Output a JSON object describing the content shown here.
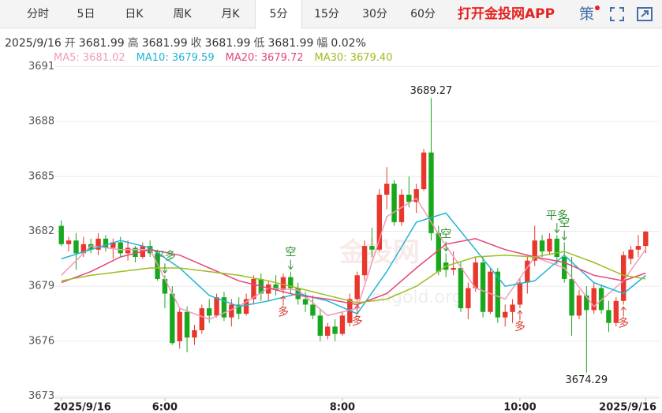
{
  "tabs": {
    "items": [
      "分时",
      "5日",
      "日K",
      "周K",
      "月K",
      "5分",
      "15分",
      "30分",
      "60分"
    ],
    "selected": "5分",
    "promo": "打开金投网APP",
    "strategy": "策"
  },
  "info": {
    "date": "2025/9/16",
    "fields": [
      {
        "label": "开",
        "value": 3681.99
      },
      {
        "label": "高",
        "value": 3681.99
      },
      {
        "label": "收",
        "value": 3681.99
      },
      {
        "label": "低",
        "value": 3681.99
      },
      {
        "label": "幅",
        "value": 0.02,
        "value_label": "0.02%"
      }
    ]
  },
  "chart_data": {
    "type": "candlestick",
    "up_color": "#e8372c",
    "down_color": "#17a81e",
    "grid": true,
    "watermark": [
      "金投网",
      "cngold.org"
    ],
    "candles": [
      [
        3682.3,
        3682.6,
        3681.2,
        3681.3
      ],
      [
        3681.3,
        3681.7,
        3680.9,
        3681.5
      ],
      [
        3681.5,
        3681.9,
        3679.9,
        3680.8
      ],
      [
        3680.8,
        3681.7,
        3680.6,
        3681.3
      ],
      [
        3681.3,
        3681.6,
        3680.8,
        3681.0
      ],
      [
        3681.0,
        3681.9,
        3680.7,
        3681.6
      ],
      [
        3681.6,
        3681.8,
        3680.9,
        3681.1
      ],
      [
        3681.1,
        3681.6,
        3680.5,
        3681.4
      ],
      [
        3681.4,
        3681.7,
        3680.6,
        3680.8
      ],
      [
        3680.8,
        3681.5,
        3680.4,
        3681.1
      ],
      [
        3681.1,
        3681.2,
        3680.3,
        3680.6
      ],
      [
        3680.6,
        3681.4,
        3680.5,
        3681.2
      ],
      [
        3681.2,
        3681.5,
        3680.6,
        3680.8
      ],
      [
        3680.8,
        3681.0,
        3679.3,
        3679.4
      ],
      [
        3679.4,
        3679.6,
        3677.8,
        3678.6
      ],
      [
        3678.6,
        3679.0,
        3675.8,
        3675.9
      ],
      [
        3676.0,
        3677.8,
        3675.6,
        3677.6
      ],
      [
        3677.6,
        3677.9,
        3675.4,
        3676.2
      ],
      [
        3676.2,
        3676.9,
        3675.8,
        3676.6
      ],
      [
        3676.6,
        3678.0,
        3676.4,
        3677.8
      ],
      [
        3677.8,
        3678.3,
        3677.0,
        3677.4
      ],
      [
        3677.4,
        3678.6,
        3677.3,
        3678.4
      ],
      [
        3678.4,
        3678.7,
        3677.1,
        3677.3
      ],
      [
        3677.3,
        3678.3,
        3676.8,
        3678.0
      ],
      [
        3678.0,
        3678.4,
        3677.2,
        3677.5
      ],
      [
        3677.5,
        3678.6,
        3677.4,
        3678.3
      ],
      [
        3678.3,
        3679.6,
        3678.0,
        3679.4
      ],
      [
        3679.4,
        3679.7,
        3678.2,
        3678.6
      ],
      [
        3678.6,
        3679.3,
        3678.2,
        3679.1
      ],
      [
        3679.1,
        3679.6,
        3678.5,
        3678.8
      ],
      [
        3678.8,
        3679.7,
        3678.6,
        3679.5
      ],
      [
        3679.5,
        3679.8,
        3678.6,
        3678.9
      ],
      [
        3678.9,
        3679.2,
        3678.0,
        3678.3
      ],
      [
        3678.3,
        3678.7,
        3677.6,
        3678.0
      ],
      [
        3678.0,
        3678.5,
        3677.2,
        3677.4
      ],
      [
        3677.4,
        3677.8,
        3676.0,
        3676.3
      ],
      [
        3676.3,
        3677.0,
        3676.1,
        3676.8
      ],
      [
        3676.8,
        3677.2,
        3676.0,
        3676.4
      ],
      [
        3676.4,
        3677.6,
        3676.3,
        3677.4
      ],
      [
        3677.0,
        3678.6,
        3676.8,
        3678.3
      ],
      [
        3678.3,
        3679.8,
        3678.1,
        3679.6
      ],
      [
        3679.6,
        3681.5,
        3679.3,
        3681.2
      ],
      [
        3681.2,
        3682.2,
        3680.6,
        3681.0
      ],
      [
        3681.0,
        3684.3,
        3680.9,
        3684.0
      ],
      [
        3684.0,
        3685.5,
        3683.2,
        3684.6
      ],
      [
        3684.6,
        3684.8,
        3682.3,
        3682.5
      ],
      [
        3682.5,
        3684.3,
        3682.3,
        3684.0
      ],
      [
        3684.0,
        3685.0,
        3683.3,
        3683.6
      ],
      [
        3683.6,
        3684.6,
        3683.0,
        3684.3
      ],
      [
        3684.3,
        3686.5,
        3684.2,
        3686.3
      ],
      [
        3686.3,
        3689.27,
        3681.5,
        3681.9
      ],
      [
        3681.9,
        3682.3,
        3679.6,
        3679.8
      ],
      [
        3680.3,
        3680.8,
        3679.5,
        3679.9
      ],
      [
        3679.9,
        3680.9,
        3679.6,
        3680.0
      ],
      [
        3680.0,
        3680.3,
        3677.6,
        3677.8
      ],
      [
        3677.8,
        3679.2,
        3677.2,
        3678.9
      ],
      [
        3678.9,
        3680.6,
        3678.7,
        3680.3
      ],
      [
        3680.3,
        3680.6,
        3677.3,
        3677.6
      ],
      [
        3677.6,
        3680.0,
        3677.5,
        3679.8
      ],
      [
        3679.8,
        3680.0,
        3677.0,
        3677.3
      ],
      [
        3677.3,
        3678.0,
        3676.8,
        3677.6
      ],
      [
        3677.6,
        3678.3,
        3677.0,
        3678.0
      ],
      [
        3678.0,
        3679.4,
        3677.8,
        3679.2
      ],
      [
        3679.2,
        3680.6,
        3678.6,
        3680.4
      ],
      [
        3680.4,
        3682.3,
        3680.1,
        3681.5
      ],
      [
        3681.5,
        3681.8,
        3680.6,
        3680.9
      ],
      [
        3680.9,
        3681.9,
        3680.7,
        3681.6
      ],
      [
        3681.6,
        3681.8,
        3680.2,
        3680.6
      ],
      [
        3680.6,
        3681.4,
        3679.2,
        3679.4
      ],
      [
        3679.4,
        3680.6,
        3676.3,
        3677.4
      ],
      [
        3677.4,
        3678.8,
        3677.2,
        3678.5
      ],
      [
        3678.5,
        3679.0,
        3674.29,
        3677.7
      ],
      [
        3677.7,
        3679.2,
        3677.5,
        3678.9
      ],
      [
        3678.9,
        3679.1,
        3677.5,
        3677.7
      ],
      [
        3677.7,
        3678.2,
        3676.5,
        3677.0
      ],
      [
        3677.0,
        3678.4,
        3676.8,
        3678.2
      ],
      [
        3678.2,
        3680.9,
        3678.0,
        3680.7
      ],
      [
        3680.5,
        3681.2,
        3680.2,
        3681.0
      ],
      [
        3681.0,
        3681.8,
        3680.6,
        3681.2
      ],
      [
        3681.2,
        3682.0,
        3680.8,
        3681.99
      ]
    ],
    "ma_x": [
      0,
      4,
      8,
      12,
      16,
      20,
      24,
      28,
      32,
      36,
      40,
      44,
      48,
      52,
      56,
      60,
      64,
      68,
      72,
      76,
      79
    ],
    "series": [
      {
        "name": "MA5:",
        "color": "#f19bb8",
        "legend_value": 3681.02,
        "values": [
          3679.6,
          3681.2,
          3681.0,
          3681.0,
          3677.8,
          3677.2,
          3677.9,
          3678.9,
          3678.8,
          3677.4,
          3677.8,
          3682.8,
          3683.8,
          3681.2,
          3678.9,
          3678.3,
          3680.6,
          3680.0,
          3677.9,
          3679.3,
          3681.02
        ]
      },
      {
        "name": "MA10:",
        "color": "#1fb4d6",
        "legend_value": 3679.59,
        "values": [
          3680.5,
          3681.0,
          3681.5,
          3681.1,
          3680.0,
          3678.5,
          3677.9,
          3678.2,
          3678.6,
          3678.2,
          3677.5,
          3679.8,
          3682.5,
          3683.0,
          3681.0,
          3679.0,
          3679.3,
          3680.7,
          3679.2,
          3678.6,
          3679.59
        ]
      },
      {
        "name": "MA20:",
        "color": "#e4467c",
        "legend_value": 3679.72,
        "values": [
          3679.2,
          3679.8,
          3680.6,
          3681.0,
          3680.7,
          3680.0,
          3679.3,
          3678.9,
          3678.5,
          3678.3,
          3678.0,
          3678.6,
          3680.0,
          3681.3,
          3681.6,
          3681.0,
          3680.6,
          3680.3,
          3679.6,
          3679.3,
          3679.72
        ]
      },
      {
        "name": "MA30:",
        "color": "#9dbd1e",
        "legend_value": {
          "value": 3679.4,
          "label": "3679.40"
        },
        "values": [
          3679.3,
          3679.6,
          3679.8,
          3680.0,
          3680.0,
          3679.8,
          3679.6,
          3679.3,
          3678.9,
          3678.5,
          3678.1,
          3678.3,
          3679.0,
          3680.1,
          3680.6,
          3680.7,
          3680.6,
          3680.9,
          3680.3,
          3679.6,
          3679.4
        ]
      }
    ],
    "ylim": [
      3672.9,
      3691.1
    ],
    "yticks": [
      3673,
      3676,
      3679,
      3682,
      3685,
      3688,
      3691
    ],
    "xticks": [
      {
        "value": 0,
        "label": "2025/9/16"
      },
      {
        "value": 14,
        "label": "6:00"
      },
      {
        "value": 38,
        "label": "8:00"
      },
      {
        "value": 62,
        "label": "10:00"
      },
      {
        "value": 79,
        "label": "2025/9/16"
      }
    ],
    "high_label_index": 50,
    "low_label_index": 71,
    "signals": [
      {
        "label": "平多",
        "index": 14
      },
      {
        "label": "多",
        "index": 30
      },
      {
        "label": "空",
        "index": 31
      },
      {
        "label": "多",
        "index": 40
      },
      {
        "label": "空",
        "index": 52
      },
      {
        "label": "多",
        "index": 62
      },
      {
        "label": "平多",
        "index": 67
      },
      {
        "label": "空",
        "index": 68
      },
      {
        "label": "多",
        "index": 76
      }
    ]
  }
}
